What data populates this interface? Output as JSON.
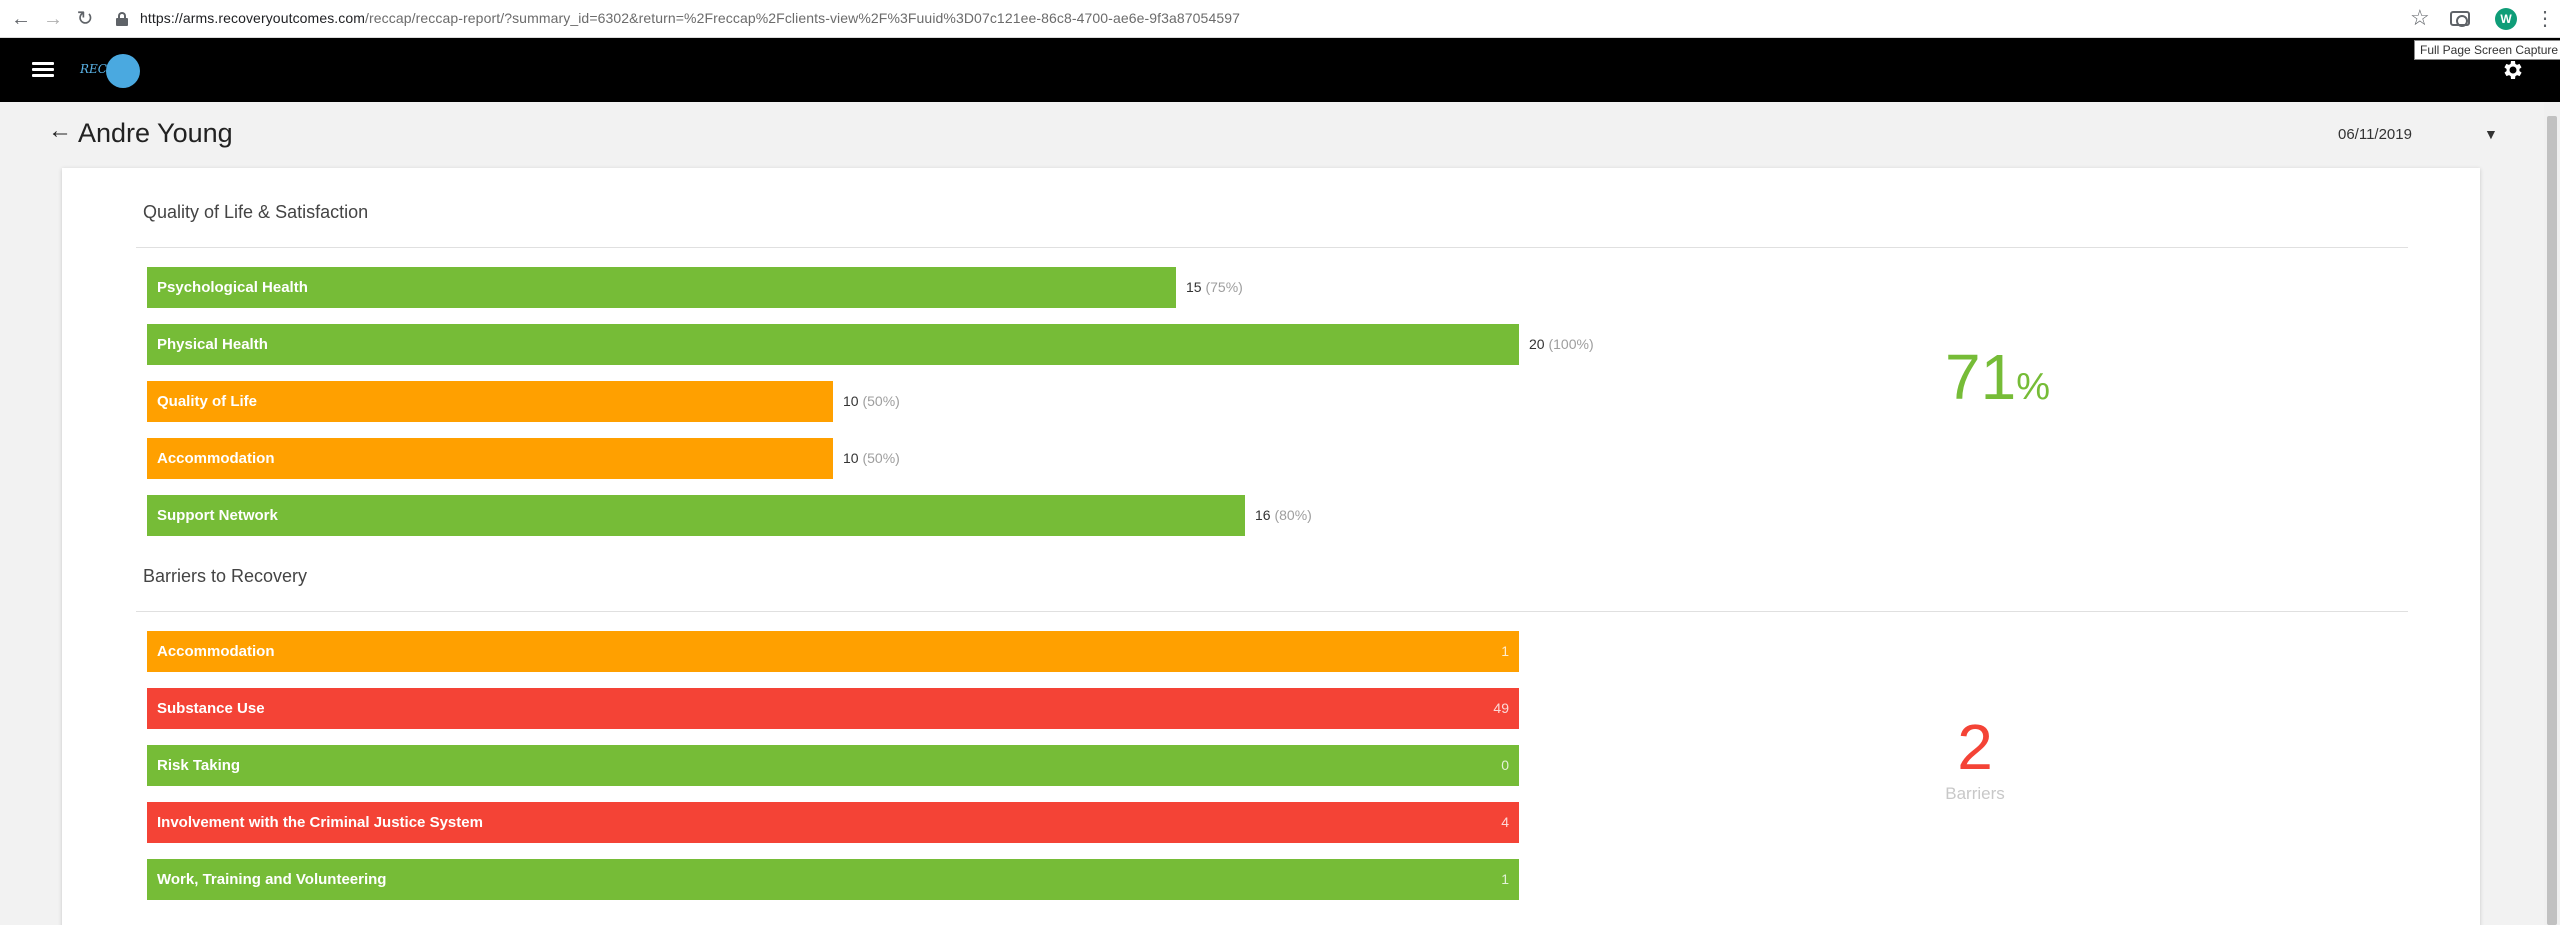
{
  "browser": {
    "url_host": "https://arms.recoveryoutcomes.com",
    "url_path": "/reccap/reccap-report/?summary_id=6302&return=%2Freccap%2Fclients-view%2F%3Fuuid%3D07c121ee-86c8-4700-ae6e-9f3a87054597",
    "profile_initial": "W",
    "tooltip": "Full Page Screen Capture"
  },
  "header": {
    "logo_text": "REC"
  },
  "page": {
    "title": "Andre Young",
    "date": "06/11/2019"
  },
  "quality": {
    "title": "Quality of Life & Satisfaction",
    "items": [
      {
        "label": "Psychological Health",
        "score": "15",
        "pct": "(75%)",
        "fraction": 0.75,
        "status": "green"
      },
      {
        "label": "Physical Health",
        "score": "20",
        "pct": "(100%)",
        "fraction": 1.0,
        "status": "green"
      },
      {
        "label": "Quality of Life",
        "score": "10",
        "pct": "(50%)",
        "fraction": 0.5,
        "status": "orange"
      },
      {
        "label": "Accommodation",
        "score": "10",
        "pct": "(50%)",
        "fraction": 0.5,
        "status": "orange"
      },
      {
        "label": "Support Network",
        "score": "16",
        "pct": "(80%)",
        "fraction": 0.8,
        "status": "green"
      }
    ],
    "overall_value": "71",
    "overall_unit": "%"
  },
  "barriers": {
    "title": "Barriers to Recovery",
    "items": [
      {
        "label": "Accommodation",
        "count": "1",
        "status": "orange"
      },
      {
        "label": "Substance Use",
        "count": "49",
        "status": "red"
      },
      {
        "label": "Risk Taking",
        "count": "0",
        "status": "green"
      },
      {
        "label": "Involvement with the Criminal Justice System",
        "count": "4",
        "status": "red"
      },
      {
        "label": "Work, Training and Volunteering",
        "count": "1",
        "status": "green"
      }
    ],
    "total": "2",
    "total_label": "Barriers"
  },
  "colors": {
    "green": "#76bc37",
    "orange": "#ffa000",
    "red": "#f44336",
    "header": "#000000"
  }
}
